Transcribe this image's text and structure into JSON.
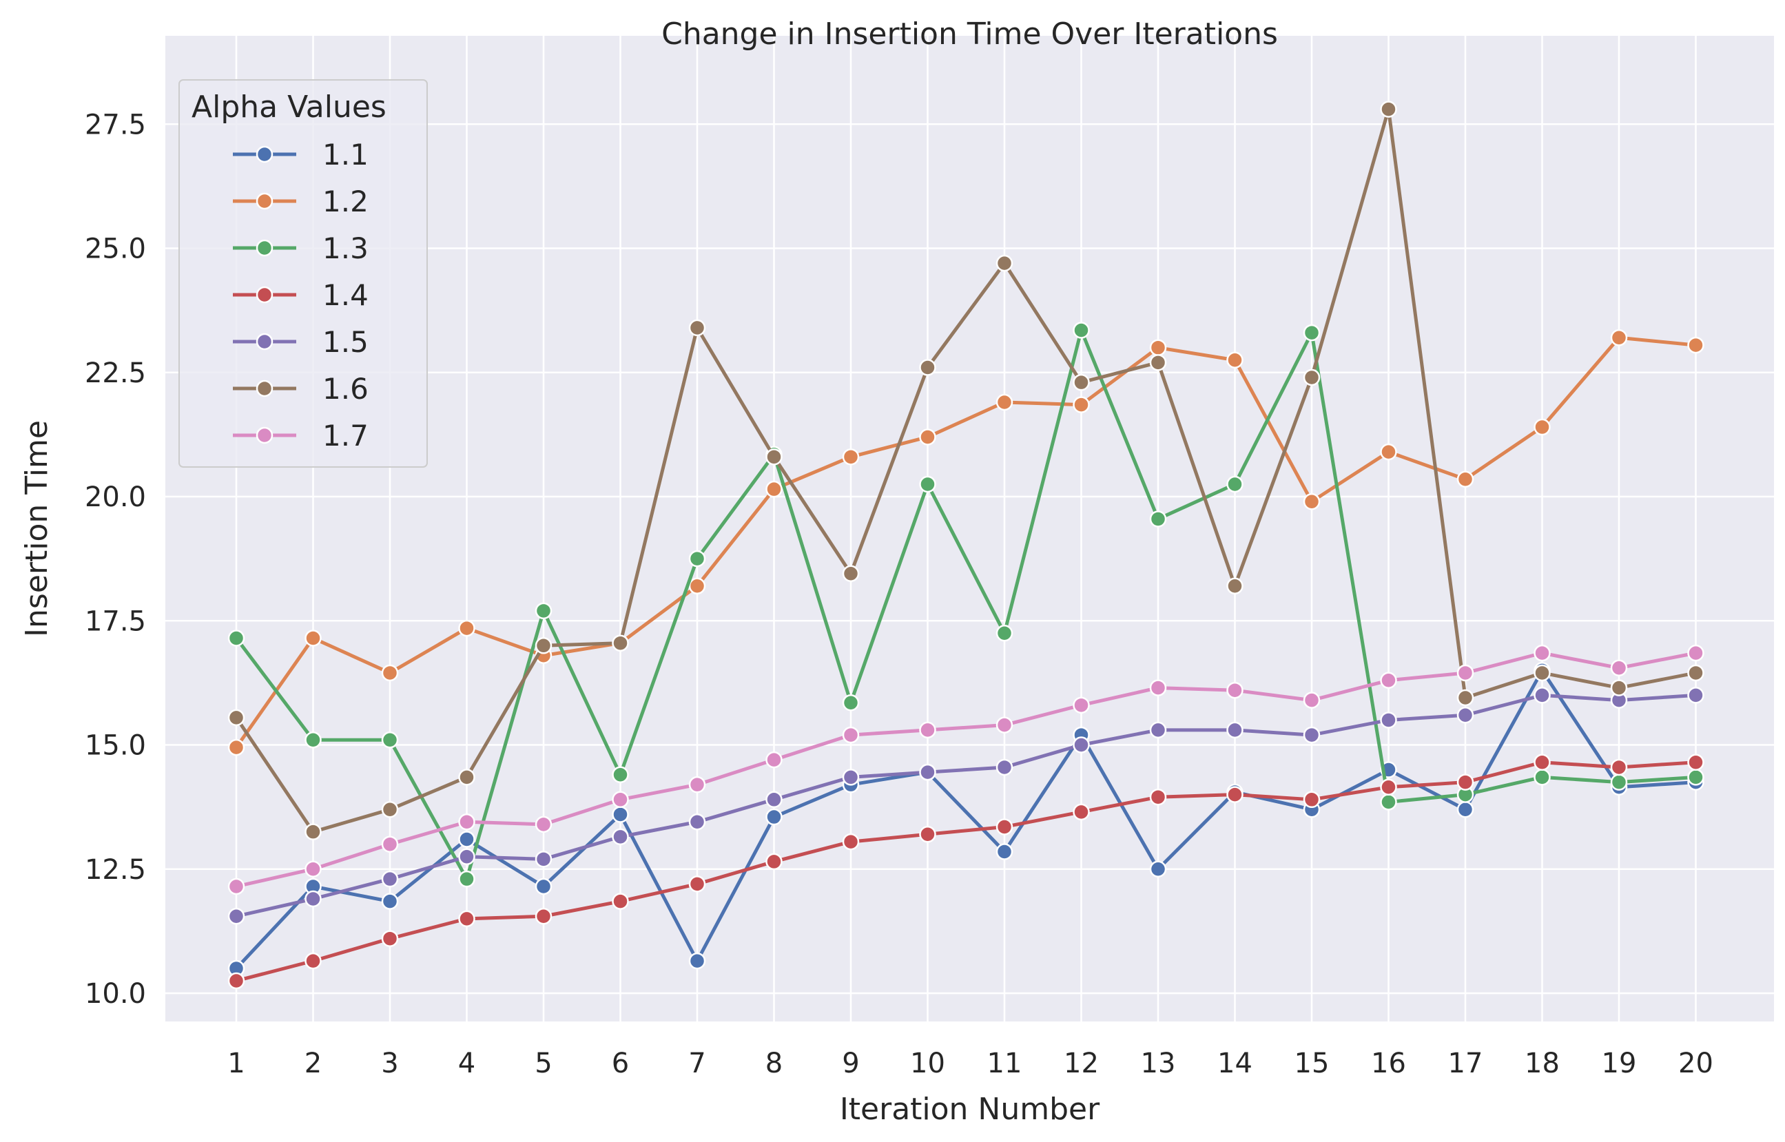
{
  "chart_data": {
    "type": "line",
    "title": "Change in Insertion Time Over Iterations",
    "xlabel": "Iteration Number",
    "ylabel": "Insertion Time",
    "x": [
      1,
      2,
      3,
      4,
      5,
      6,
      7,
      8,
      9,
      10,
      11,
      12,
      13,
      14,
      15,
      16,
      17,
      18,
      19,
      20
    ],
    "x_tick_labels": [
      "1",
      "2",
      "3",
      "4",
      "5",
      "6",
      "7",
      "8",
      "9",
      "10",
      "11",
      "12",
      "13",
      "14",
      "15",
      "16",
      "17",
      "18",
      "19",
      "20"
    ],
    "ylim": [
      9.4,
      28.7
    ],
    "y_ticks": [
      10.0,
      12.5,
      15.0,
      17.5,
      20.0,
      22.5,
      25.0,
      27.5
    ],
    "y_tick_labels": [
      "10.0",
      "12.5",
      "15.0",
      "17.5",
      "20.0",
      "22.5",
      "25.0",
      "27.5"
    ],
    "grid": true,
    "background": "#eaeaf2",
    "legend": {
      "title": "Alpha Values",
      "placement": "top-left"
    },
    "series": [
      {
        "name": "1.1",
        "color": "#4c72b0",
        "values": [
          10.5,
          12.15,
          11.85,
          13.1,
          12.15,
          13.6,
          10.65,
          13.55,
          14.2,
          14.45,
          12.85,
          15.2,
          12.5,
          14.05,
          13.7,
          14.5,
          13.7,
          16.5,
          14.15,
          14.25
        ]
      },
      {
        "name": "1.2",
        "color": "#dd8452",
        "values": [
          14.95,
          17.15,
          16.45,
          17.35,
          16.8,
          17.05,
          18.2,
          20.15,
          20.8,
          21.2,
          21.9,
          21.85,
          23.0,
          22.75,
          19.9,
          20.9,
          20.35,
          21.4,
          23.2,
          23.05
        ]
      },
      {
        "name": "1.3",
        "color": "#55a868",
        "values": [
          17.15,
          15.1,
          15.1,
          12.3,
          17.7,
          14.4,
          18.75,
          20.85,
          15.85,
          20.25,
          17.25,
          23.35,
          19.55,
          20.25,
          23.3,
          13.85,
          14.0,
          14.35,
          14.25,
          14.35
        ]
      },
      {
        "name": "1.4",
        "color": "#c44e52",
        "values": [
          10.25,
          10.65,
          11.1,
          11.5,
          11.55,
          11.85,
          12.2,
          12.65,
          13.05,
          13.2,
          13.35,
          13.65,
          13.95,
          14.0,
          13.9,
          14.15,
          14.25,
          14.65,
          14.55,
          14.65
        ]
      },
      {
        "name": "1.5",
        "color": "#8172b3",
        "values": [
          11.55,
          11.9,
          12.3,
          12.75,
          12.7,
          13.15,
          13.45,
          13.9,
          14.35,
          14.45,
          14.55,
          15.0,
          15.3,
          15.3,
          15.2,
          15.5,
          15.6,
          16.0,
          15.9,
          16.0
        ]
      },
      {
        "name": "1.6",
        "color": "#937860",
        "values": [
          15.55,
          13.25,
          13.7,
          14.35,
          17.0,
          17.05,
          23.4,
          20.8,
          18.45,
          22.6,
          24.7,
          22.3,
          22.7,
          18.2,
          22.4,
          27.8,
          15.95,
          16.45,
          16.15,
          16.45
        ]
      },
      {
        "name": "1.7",
        "color": "#da8bc3",
        "values": [
          12.15,
          12.5,
          13.0,
          13.45,
          13.4,
          13.9,
          14.2,
          14.7,
          15.2,
          15.3,
          15.4,
          15.8,
          16.15,
          16.1,
          15.9,
          16.3,
          16.45,
          16.85,
          16.55,
          16.85
        ]
      }
    ]
  }
}
